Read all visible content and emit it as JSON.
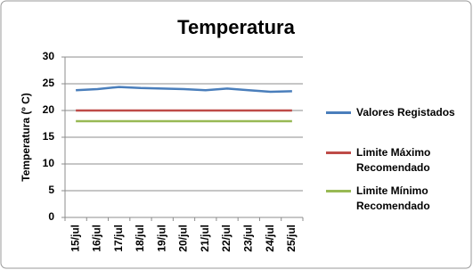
{
  "chart_data": {
    "type": "line",
    "title": "Temperatura",
    "y_label": "Temperatura (º C)",
    "categories": [
      "15/jul",
      "16/jul",
      "17/jul",
      "18/jul",
      "19/jul",
      "20/jul",
      "21/jul",
      "22/jul",
      "23/jul",
      "24/jul",
      "25/jul"
    ],
    "series": [
      {
        "name": "Valores Registados",
        "color": "#4a7ebb",
        "values": [
          23.8,
          24.0,
          24.4,
          24.2,
          24.1,
          24.0,
          23.8,
          24.1,
          23.8,
          23.5,
          23.6
        ]
      },
      {
        "name": "Limite Máximo Recomendado",
        "color": "#be4b48",
        "values": [
          20,
          20,
          20,
          20,
          20,
          20,
          20,
          20,
          20,
          20,
          20
        ]
      },
      {
        "name": "Limite Mínimo Recomendado",
        "color": "#98b954",
        "values": [
          18,
          18,
          18,
          18,
          18,
          18,
          18,
          18,
          18,
          18,
          18
        ]
      }
    ],
    "ylim": [
      0,
      30
    ],
    "yticks": [
      0,
      5,
      10,
      15,
      20,
      25,
      30
    ],
    "grid": true,
    "legend": "right"
  }
}
